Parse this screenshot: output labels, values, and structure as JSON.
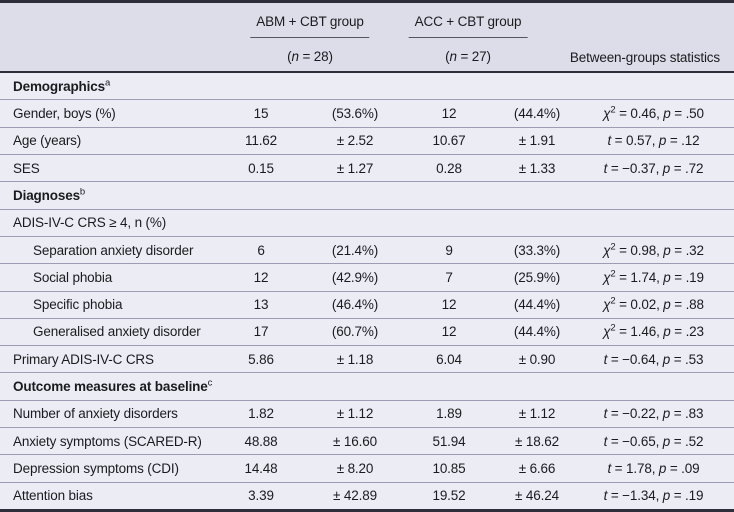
{
  "table": {
    "header": {
      "groups": [
        {
          "name": "ABM + CBT group",
          "n": "(n = 28)"
        },
        {
          "name": "ACC + CBT group",
          "n": "(n = 27)"
        }
      ],
      "stats_label": "Between-groups statistics"
    },
    "rows": [
      {
        "kind": "section",
        "label": "Demographics",
        "footnote": "a"
      },
      {
        "kind": "data",
        "indent": false,
        "label": "Gender, boys (%)",
        "v1": "15",
        "d1": "(53.6%)",
        "v2": "12",
        "d2": "(44.4%)",
        "stat": {
          "symbol": "χ2",
          "value": "0.46",
          "p": ".50"
        }
      },
      {
        "kind": "data",
        "indent": false,
        "label": "Age (years)",
        "v1": "11.62",
        "d1": "± 2.52",
        "v2": "10.67",
        "d2": "± 1.91",
        "stat": {
          "symbol": "t",
          "value": "0.57",
          "p": ".12"
        }
      },
      {
        "kind": "data",
        "indent": false,
        "label": "SES",
        "v1": "0.15",
        "d1": "± 1.27",
        "v2": "0.28",
        "d2": "± 1.33",
        "stat": {
          "symbol": "t",
          "value": "−0.37",
          "p": ".72"
        }
      },
      {
        "kind": "section",
        "label": "Diagnoses",
        "footnote": "b"
      },
      {
        "kind": "subheader",
        "label": "ADIS-IV-C CRS ≥ 4, n (%)"
      },
      {
        "kind": "data",
        "indent": true,
        "label": "Separation anxiety disorder",
        "v1": "6",
        "d1": "(21.4%)",
        "v2": "9",
        "d2": "(33.3%)",
        "stat": {
          "symbol": "χ2",
          "value": "0.98",
          "p": ".32"
        }
      },
      {
        "kind": "data",
        "indent": true,
        "label": "Social phobia",
        "v1": "12",
        "d1": "(42.9%)",
        "v2": "7",
        "d2": "(25.9%)",
        "stat": {
          "symbol": "χ2",
          "value": "1.74",
          "p": ".19"
        }
      },
      {
        "kind": "data",
        "indent": true,
        "label": "Specific phobia",
        "v1": "13",
        "d1": "(46.4%)",
        "v2": "12",
        "d2": "(44.4%)",
        "stat": {
          "symbol": "χ2",
          "value": "0.02",
          "p": ".88"
        }
      },
      {
        "kind": "data",
        "indent": true,
        "label": "Generalised anxiety disorder",
        "v1": "17",
        "d1": "(60.7%)",
        "v2": "12",
        "d2": "(44.4%)",
        "stat": {
          "symbol": "χ2",
          "value": "1.46",
          "p": ".23"
        }
      },
      {
        "kind": "data",
        "indent": false,
        "label": "Primary ADIS-IV-C CRS",
        "v1": "5.86",
        "d1": "± 1.18",
        "v2": "6.04",
        "d2": "± 0.90",
        "stat": {
          "symbol": "t",
          "value": "−0.64",
          "p": ".53"
        }
      },
      {
        "kind": "section",
        "label": "Outcome measures at baseline",
        "footnote": "c"
      },
      {
        "kind": "data",
        "indent": false,
        "label": "Number of anxiety disorders",
        "v1": "1.82",
        "d1": "± 1.12",
        "v2": "1.89",
        "d2": "± 1.12",
        "stat": {
          "symbol": "t",
          "value": "−0.22",
          "p": ".83"
        }
      },
      {
        "kind": "data",
        "indent": false,
        "label": "Anxiety symptoms (SCARED-R)",
        "v1": "48.88",
        "d1": "± 16.60",
        "v2": "51.94",
        "d2": "± 18.62",
        "stat": {
          "symbol": "t",
          "value": "−0.65",
          "p": ".52"
        }
      },
      {
        "kind": "data",
        "indent": false,
        "label": "Depression symptoms (CDI)",
        "v1": "14.48",
        "d1": "± 8.20",
        "v2": "10.85",
        "d2": "± 6.66",
        "stat": {
          "symbol": "t",
          "value": "1.78",
          "p": ".09"
        }
      },
      {
        "kind": "data",
        "indent": false,
        "label": "Attention bias",
        "v1": "3.39",
        "d1": "± 42.89",
        "v2": "19.52",
        "d2": "± 46.24",
        "stat": {
          "symbol": "t",
          "value": "−1.34",
          "p": ".19"
        }
      }
    ]
  },
  "colors": {
    "header_bg": "#dddde9",
    "body_bg": "#ececf5",
    "rule_dark": "#2e2e3a",
    "rule_light": "#9c9cb4",
    "text": "#1b1b1f"
  }
}
